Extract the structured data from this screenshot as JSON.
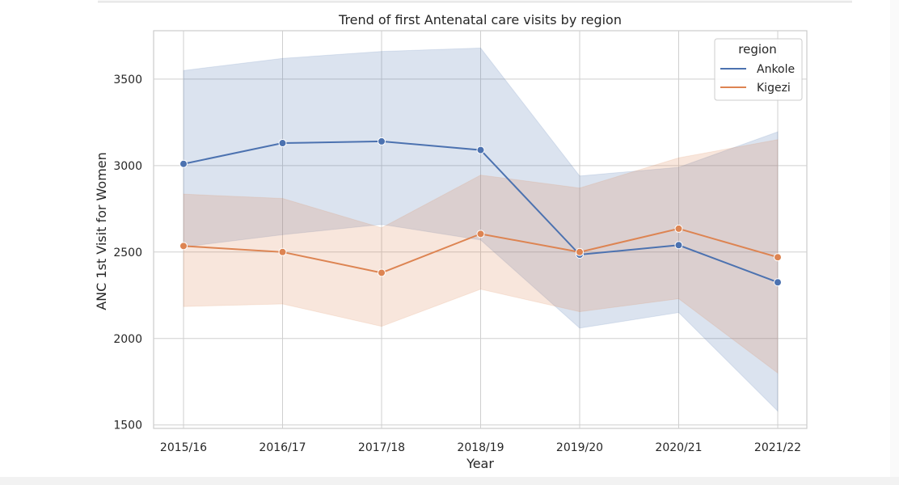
{
  "chart_data": {
    "type": "line",
    "title": "Trend of first Antenatal care visits by region",
    "xlabel": "Year",
    "ylabel": "ANC 1st Visit for Women",
    "categories": [
      "2015/16",
      "2016/17",
      "2017/18",
      "2018/19",
      "2019/20",
      "2020/21",
      "2021/22"
    ],
    "ylim": [
      1480,
      3780
    ],
    "yticks": [
      1500,
      2000,
      2500,
      3000,
      3500
    ],
    "grid": true,
    "legend": {
      "title": "region",
      "placement": "top-right"
    },
    "series": [
      {
        "name": "Ankole",
        "color": "#4c72b0",
        "values": [
          3010,
          3130,
          3140,
          3090,
          2485,
          2540,
          2325
        ],
        "ci_low": [
          2530,
          2600,
          2660,
          2570,
          2060,
          2150,
          1580
        ],
        "ci_high": [
          3550,
          3620,
          3660,
          3680,
          2940,
          2990,
          3195
        ]
      },
      {
        "name": "Kigezi",
        "color": "#dd8452",
        "values": [
          2535,
          2500,
          2380,
          2605,
          2500,
          2635,
          2470
        ],
        "ci_low": [
          2185,
          2200,
          2070,
          2285,
          2155,
          2230,
          1800
        ],
        "ci_high": [
          2835,
          2810,
          2640,
          2945,
          2870,
          3045,
          3150
        ]
      }
    ]
  }
}
